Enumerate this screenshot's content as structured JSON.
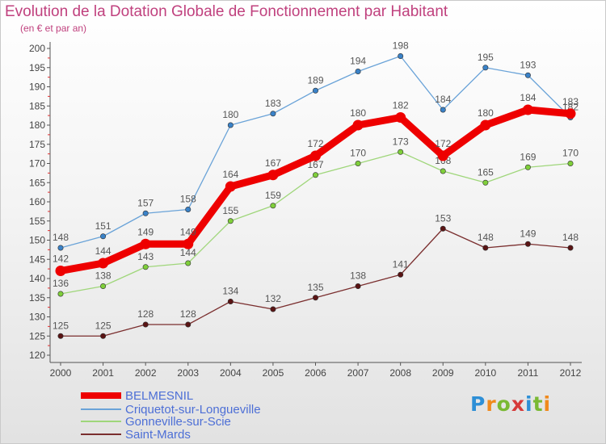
{
  "header": {
    "title": "Evolution de la Dotation Globale de Fonctionnement par Habitant",
    "subtitle": "(en € et par an)"
  },
  "logo": {
    "text": "Proxiti",
    "colors": [
      "#2e8fd6",
      "#f08a1c",
      "#7ab934",
      "#d63a3a",
      "#2e8fd6",
      "#7ab934",
      "#f08a1c"
    ]
  },
  "chart_data": {
    "type": "line",
    "title": "Evolution de la Dotation Globale de Fonctionnement par Habitant",
    "subtitle": "(en € et par an)",
    "x": [
      "2000",
      "2001",
      "2002",
      "2003",
      "2004",
      "2005",
      "2006",
      "2007",
      "2008",
      "2009",
      "2010",
      "2011",
      "2012"
    ],
    "ylim": [
      120,
      200
    ],
    "yticks": [
      120,
      125,
      130,
      135,
      140,
      145,
      150,
      155,
      160,
      165,
      170,
      175,
      180,
      185,
      190,
      195,
      200
    ],
    "grid": false,
    "legend": "bottom-left",
    "series": [
      {
        "name": "BELMESNIL",
        "color": "#ee0000",
        "marker": "#ee0000",
        "bold": true,
        "values": [
          142,
          144,
          149,
          149,
          164,
          167,
          172,
          180,
          182,
          172,
          180,
          184,
          183
        ]
      },
      {
        "name": "Criquetot-sur-Longueville",
        "color": "#6aa3d8",
        "marker": "#3a82c8",
        "bold": false,
        "values": [
          148,
          151,
          157,
          158,
          180,
          183,
          189,
          194,
          198,
          184,
          195,
          193,
          182
        ]
      },
      {
        "name": "Gonneville-sur-Scie",
        "color": "#9fd67a",
        "marker": "#7fcf3a",
        "bold": false,
        "values": [
          136,
          138,
          143,
          144,
          155,
          159,
          167,
          170,
          173,
          168,
          165,
          169,
          170
        ]
      },
      {
        "name": "Saint-Mards",
        "color": "#7a2e2e",
        "marker": "#5a1414",
        "bold": false,
        "values": [
          125,
          125,
          128,
          128,
          134,
          132,
          135,
          138,
          141,
          153,
          148,
          149,
          148
        ]
      }
    ]
  }
}
